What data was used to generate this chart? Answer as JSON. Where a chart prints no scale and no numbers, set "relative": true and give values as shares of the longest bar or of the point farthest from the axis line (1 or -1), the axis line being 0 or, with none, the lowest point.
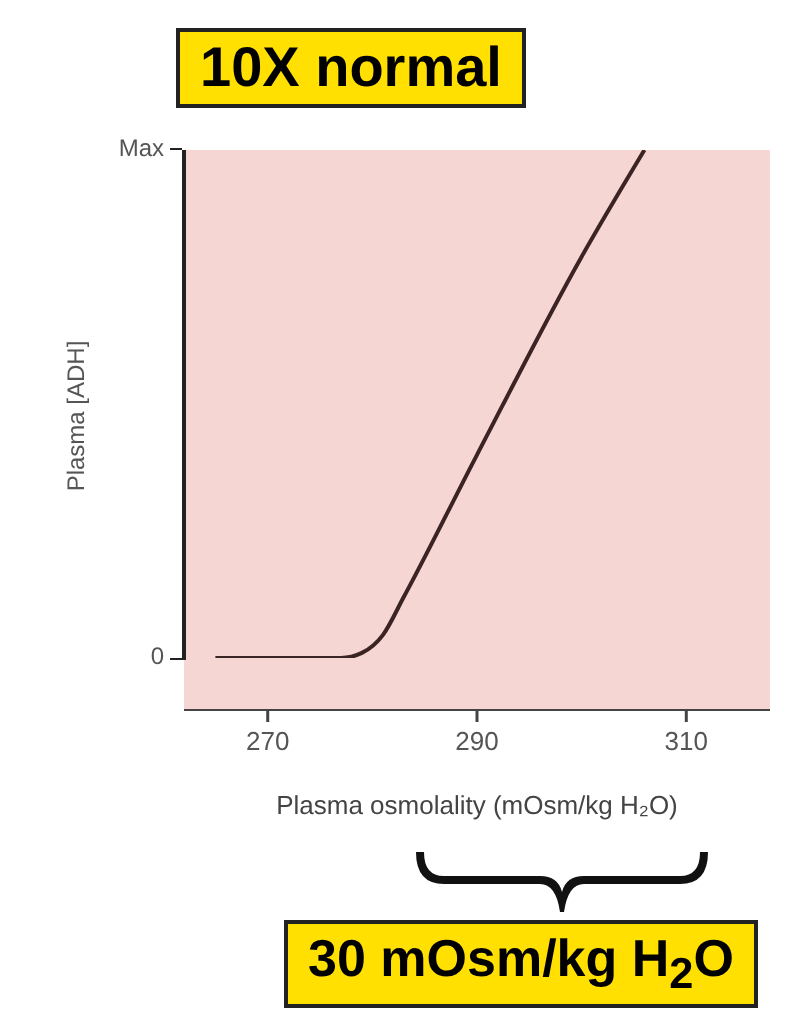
{
  "chart_data": {
    "type": "line",
    "xlabel": "Plasma osmolality (mOsm/kg H₂O)",
    "ylabel": "Plasma [ADH]",
    "annotations": [
      "10X normal",
      "30 mOsm/kg H$_{2}$O",
      "0",
      "Max"
    ],
    "x": [
      265,
      277,
      279,
      281,
      283,
      290,
      300,
      306
    ],
    "series": [
      {
        "color": "#3a2424",
        "values": [
          0,
          0,
          0.01,
          0.045,
          0.12,
          0.4,
          0.79,
          1
        ]
      }
    ],
    "relative": true,
    "xlim": [
      262,
      318
    ],
    "xticks": [
      270,
      290,
      310
    ],
    "grid": false,
    "legend": false,
    "marker": "none",
    "line_style": "solid"
  }
}
